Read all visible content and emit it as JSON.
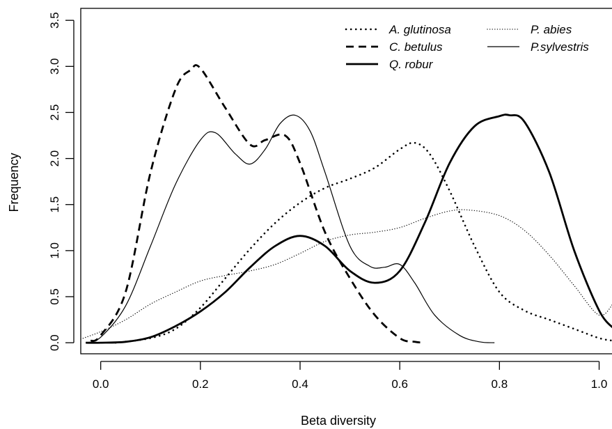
{
  "chart_data": {
    "type": "line",
    "xlabel": "Beta diversity",
    "ylabel": "Frequency",
    "xlim": [
      -0.04,
      1.03
    ],
    "ylim": [
      -0.12,
      3.63
    ],
    "x_ticks": [
      "0.0",
      "0.2",
      "0.4",
      "0.6",
      "0.8",
      "1.0"
    ],
    "y_ticks": [
      "0.0",
      "0.5",
      "1.0",
      "1.5",
      "2.0",
      "2.5",
      "3.0",
      "3.5"
    ],
    "legend_position": "top-right",
    "grid": false,
    "series": [
      {
        "name": "A. glutinosa",
        "style": "dotted-thick",
        "x": [
          0.03,
          0.1,
          0.15,
          0.2,
          0.25,
          0.3,
          0.35,
          0.4,
          0.45,
          0.5,
          0.55,
          0.6,
          0.63,
          0.66,
          0.7,
          0.75,
          0.8,
          0.85,
          0.9,
          0.95,
          1.0,
          1.03
        ],
        "y": [
          0.0,
          0.05,
          0.15,
          0.38,
          0.7,
          1.02,
          1.3,
          1.52,
          1.68,
          1.78,
          1.9,
          2.1,
          2.17,
          2.05,
          1.65,
          1.05,
          0.55,
          0.35,
          0.25,
          0.15,
          0.05,
          0.02
        ]
      },
      {
        "name": "C. betulus",
        "style": "dashed",
        "x": [
          -0.02,
          0.0,
          0.05,
          0.1,
          0.15,
          0.18,
          0.2,
          0.25,
          0.3,
          0.33,
          0.37,
          0.4,
          0.45,
          0.5,
          0.55,
          0.6,
          0.63,
          0.65
        ],
        "y": [
          0.02,
          0.08,
          0.55,
          1.85,
          2.75,
          2.96,
          2.98,
          2.55,
          2.15,
          2.2,
          2.25,
          1.95,
          1.2,
          0.7,
          0.3,
          0.05,
          0.01,
          0.0
        ]
      },
      {
        "name": "Q. robur",
        "style": "solid-thick",
        "x": [
          -0.03,
          0.0,
          0.05,
          0.1,
          0.15,
          0.2,
          0.25,
          0.3,
          0.35,
          0.4,
          0.45,
          0.5,
          0.55,
          0.6,
          0.65,
          0.7,
          0.75,
          0.8,
          0.82,
          0.85,
          0.9,
          0.95,
          1.0,
          1.03
        ],
        "y": [
          0.0,
          0.0,
          0.01,
          0.06,
          0.18,
          0.34,
          0.55,
          0.82,
          1.05,
          1.16,
          1.05,
          0.78,
          0.65,
          0.78,
          1.3,
          1.95,
          2.35,
          2.46,
          2.47,
          2.4,
          1.85,
          1.0,
          0.35,
          0.15
        ]
      },
      {
        "name": "P. abies",
        "style": "dotted-thin",
        "x": [
          -0.04,
          0.0,
          0.05,
          0.1,
          0.15,
          0.2,
          0.25,
          0.3,
          0.35,
          0.4,
          0.45,
          0.5,
          0.55,
          0.6,
          0.65,
          0.7,
          0.74,
          0.8,
          0.85,
          0.9,
          0.95,
          1.0,
          1.03
        ],
        "y": [
          0.04,
          0.12,
          0.25,
          0.42,
          0.55,
          0.67,
          0.73,
          0.78,
          0.85,
          0.97,
          1.1,
          1.17,
          1.2,
          1.25,
          1.35,
          1.43,
          1.44,
          1.38,
          1.22,
          0.95,
          0.62,
          0.3,
          0.44
        ]
      },
      {
        "name": "P.sylvestris",
        "style": "solid-thin",
        "x": [
          -0.03,
          0.0,
          0.05,
          0.1,
          0.15,
          0.2,
          0.23,
          0.27,
          0.3,
          0.33,
          0.36,
          0.39,
          0.42,
          0.45,
          0.5,
          0.54,
          0.57,
          0.6,
          0.63,
          0.67,
          0.72,
          0.76,
          0.79
        ],
        "y": [
          0.0,
          0.06,
          0.4,
          1.05,
          1.72,
          2.2,
          2.28,
          2.05,
          1.94,
          2.1,
          2.38,
          2.47,
          2.3,
          1.85,
          1.05,
          0.83,
          0.82,
          0.85,
          0.65,
          0.3,
          0.08,
          0.01,
          0.0
        ]
      }
    ]
  }
}
